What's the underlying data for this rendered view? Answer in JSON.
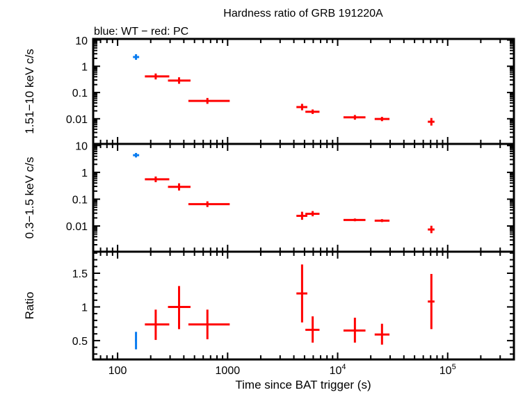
{
  "chart_data": {
    "type": "scatter",
    "title": "Hardness ratio of GRB 191220A",
    "subtitle": "blue: WT − red: PC",
    "xlabel": "Time since BAT trigger (s)",
    "xscale": "log",
    "xlim": [
      60,
      400000
    ],
    "xticks": [
      {
        "v": 100,
        "t": "100"
      },
      {
        "v": 1000,
        "t": "1000"
      },
      {
        "v": 10000,
        "t": "10",
        "sup": "4"
      },
      {
        "v": 100000,
        "t": "10",
        "sup": "5"
      }
    ],
    "colors": {
      "WT": "#0a7cf0",
      "PC": "#ff0000"
    },
    "panels": [
      {
        "ylabel": "1.51−10 keV c/s",
        "yscale": "log",
        "ylim": [
          0.0011,
          11
        ],
        "yticks": [
          {
            "v": 10,
            "t": "10"
          },
          {
            "v": 1,
            "t": "1"
          },
          {
            "v": 0.1,
            "t": "0.1"
          },
          {
            "v": 0.01,
            "t": "0.01"
          }
        ],
        "points": [
          {
            "mode": "WT",
            "x": 147,
            "xlo": 138,
            "xhi": 157,
            "y": 2.25,
            "ylo": 1.76,
            "yhi": 2.88
          },
          {
            "mode": "PC",
            "x": 222,
            "xlo": 177,
            "xhi": 295,
            "y": 0.41,
            "ylo": 0.315,
            "yhi": 0.53
          },
          {
            "mode": "PC",
            "x": 362,
            "xlo": 287,
            "xhi": 460,
            "y": 0.286,
            "ylo": 0.215,
            "yhi": 0.38
          },
          {
            "mode": "PC",
            "x": 655,
            "xlo": 440,
            "xhi": 1045,
            "y": 0.048,
            "ylo": 0.037,
            "yhi": 0.062
          },
          {
            "mode": "PC",
            "x": 4750,
            "xlo": 4220,
            "xhi": 5300,
            "y": 0.0279,
            "ylo": 0.021,
            "yhi": 0.037
          },
          {
            "mode": "PC",
            "x": 5930,
            "xlo": 5090,
            "xhi": 6840,
            "y": 0.0185,
            "ylo": 0.0152,
            "yhi": 0.0226
          },
          {
            "mode": "PC",
            "x": 14350,
            "xlo": 11300,
            "xhi": 17900,
            "y": 0.0113,
            "ylo": 0.0092,
            "yhi": 0.0139
          },
          {
            "mode": "PC",
            "x": 25300,
            "xlo": 21700,
            "xhi": 29600,
            "y": 0.0098,
            "ylo": 0.0081,
            "yhi": 0.0118
          },
          {
            "mode": "PC",
            "x": 71100,
            "xlo": 66000,
            "xhi": 75900,
            "y": 0.0077,
            "ylo": 0.0055,
            "yhi": 0.0107
          }
        ]
      },
      {
        "ylabel": "0.3−1.5 keV c/s",
        "yscale": "log",
        "ylim": [
          0.0011,
          11.5
        ],
        "yticks": [
          {
            "v": 10,
            "t": "10"
          },
          {
            "v": 1,
            "t": "1"
          },
          {
            "v": 0.1,
            "t": "0.1"
          },
          {
            "v": 0.01,
            "t": "0.01"
          }
        ],
        "points": [
          {
            "mode": "WT",
            "x": 147,
            "xlo": 138,
            "xhi": 157,
            "y": 4.37,
            "ylo": 3.6,
            "yhi": 5.3
          },
          {
            "mode": "PC",
            "x": 222,
            "xlo": 177,
            "xhi": 295,
            "y": 0.55,
            "ylo": 0.43,
            "yhi": 0.7
          },
          {
            "mode": "PC",
            "x": 362,
            "xlo": 287,
            "xhi": 460,
            "y": 0.287,
            "ylo": 0.21,
            "yhi": 0.39
          },
          {
            "mode": "PC",
            "x": 655,
            "xlo": 440,
            "xhi": 1045,
            "y": 0.065,
            "ylo": 0.051,
            "yhi": 0.083
          },
          {
            "mode": "PC",
            "x": 4750,
            "xlo": 4220,
            "xhi": 5300,
            "y": 0.0239,
            "ylo": 0.017,
            "yhi": 0.034
          },
          {
            "mode": "PC",
            "x": 5930,
            "xlo": 5090,
            "xhi": 6840,
            "y": 0.0285,
            "ylo": 0.023,
            "yhi": 0.036
          },
          {
            "mode": "PC",
            "x": 14350,
            "xlo": 11300,
            "xhi": 17900,
            "y": 0.0168,
            "ylo": 0.015,
            "yhi": 0.019
          },
          {
            "mode": "PC",
            "x": 25300,
            "xlo": 21700,
            "xhi": 29600,
            "y": 0.0158,
            "ylo": 0.014,
            "yhi": 0.018
          },
          {
            "mode": "PC",
            "x": 71100,
            "xlo": 66000,
            "xhi": 75900,
            "y": 0.0074,
            "ylo": 0.0054,
            "yhi": 0.0102
          }
        ]
      },
      {
        "ylabel": "Ratio",
        "yscale": "linear",
        "ylim": [
          0.22,
          1.82
        ],
        "yticks": [
          {
            "v": 1.5,
            "t": "1.5"
          },
          {
            "v": 1,
            "t": "1"
          },
          {
            "v": 0.5,
            "t": "0.5"
          }
        ],
        "points": [
          {
            "mode": "WT",
            "x": 147,
            "xlo": 144,
            "xhi": 150,
            "y": 0.5,
            "ylo": 0.37,
            "yhi": 0.63
          },
          {
            "mode": "PC",
            "x": 222,
            "xlo": 177,
            "xhi": 295,
            "y": 0.74,
            "ylo": 0.51,
            "yhi": 0.96
          },
          {
            "mode": "PC",
            "x": 362,
            "xlo": 287,
            "xhi": 460,
            "y": 1.0,
            "ylo": 0.67,
            "yhi": 1.31
          },
          {
            "mode": "PC",
            "x": 655,
            "xlo": 440,
            "xhi": 1045,
            "y": 0.74,
            "ylo": 0.52,
            "yhi": 0.96
          },
          {
            "mode": "PC",
            "x": 4750,
            "xlo": 4220,
            "xhi": 5300,
            "y": 1.2,
            "ylo": 0.77,
            "yhi": 1.63
          },
          {
            "mode": "PC",
            "x": 5930,
            "xlo": 5090,
            "xhi": 6840,
            "y": 0.66,
            "ylo": 0.47,
            "yhi": 0.86
          },
          {
            "mode": "PC",
            "x": 14350,
            "xlo": 11300,
            "xhi": 17900,
            "y": 0.65,
            "ylo": 0.47,
            "yhi": 0.84
          },
          {
            "mode": "PC",
            "x": 25300,
            "xlo": 21700,
            "xhi": 29600,
            "y": 0.59,
            "ylo": 0.44,
            "yhi": 0.75
          },
          {
            "mode": "PC",
            "x": 71100,
            "xlo": 66000,
            "xhi": 75900,
            "y": 1.08,
            "ylo": 0.67,
            "yhi": 1.49
          }
        ]
      }
    ]
  }
}
